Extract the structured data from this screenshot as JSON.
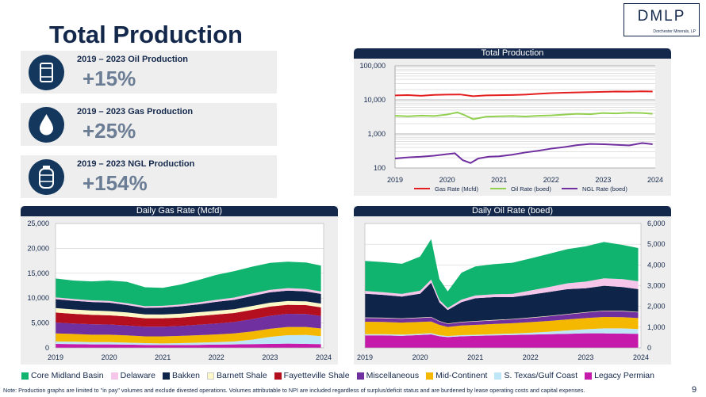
{
  "page": {
    "title": "Total Production",
    "logo_text": "DMLP",
    "logo_subtext": "Dorchester Minerals, LP",
    "page_number": "9",
    "note": "Note: Production graphs are limited to \"in pay\" volumes and exclude divested operations. Volumes attributable to NPI are included regardless of surplus/deficit status and are burdened by lease operating costs and capital expenses."
  },
  "cards": [
    {
      "label": "2019 – 2023 Oil Production",
      "value": "+15%",
      "icon": "oil-barrel-icon"
    },
    {
      "label": "2019 – 2023 Gas Production",
      "value": "+25%",
      "icon": "gas-drop-icon"
    },
    {
      "label": "2019 – 2023 NGL Production",
      "value": "+154%",
      "icon": "ngl-tank-icon"
    }
  ],
  "colors": {
    "navy": "#14284b",
    "gas_rate": "#e41f1f",
    "oil_rate": "#92d050",
    "ngl_rate": "#7030a0"
  },
  "chart_data": [
    {
      "id": "total_production",
      "type": "line",
      "title": "Total Production",
      "yscale": "log",
      "ylim": [
        100,
        100000
      ],
      "ytick_labels": [
        "100",
        "1,000",
        "10,000",
        "100,000"
      ],
      "xlim": [
        2019,
        2024
      ],
      "xtick_labels": [
        "2019",
        "2020",
        "2021",
        "2022",
        "2023",
        "2024"
      ],
      "series": [
        {
          "name": "Gas Rate  (Mcfd)",
          "color": "#e41f1f",
          "x": [
            2019.0,
            2019.25,
            2019.5,
            2019.75,
            2020.0,
            2020.25,
            2020.5,
            2020.75,
            2021.0,
            2021.25,
            2021.5,
            2021.75,
            2022.0,
            2022.25,
            2022.5,
            2022.75,
            2023.0,
            2023.25,
            2023.5,
            2023.75,
            2023.95
          ],
          "values": [
            13500,
            13800,
            13200,
            14000,
            14300,
            14400,
            12800,
            13500,
            13700,
            13900,
            14300,
            15000,
            15800,
            16200,
            16500,
            16800,
            17200,
            17600,
            17400,
            17800,
            17500
          ]
        },
        {
          "name": "Oil Rate (boed)",
          "color": "#92d050",
          "x": [
            2019.0,
            2019.25,
            2019.5,
            2019.75,
            2020.0,
            2020.2,
            2020.35,
            2020.5,
            2020.75,
            2021.0,
            2021.25,
            2021.5,
            2021.75,
            2022.0,
            2022.25,
            2022.5,
            2022.75,
            2023.0,
            2023.25,
            2023.5,
            2023.75,
            2023.95
          ],
          "values": [
            3400,
            3300,
            3450,
            3350,
            3700,
            4300,
            3500,
            2700,
            3200,
            3300,
            3350,
            3250,
            3400,
            3500,
            3700,
            3900,
            3800,
            4100,
            4000,
            4200,
            4100,
            3900
          ]
        },
        {
          "name": "NGL Rate (boed)",
          "color": "#7030a0",
          "x": [
            2019.0,
            2019.25,
            2019.5,
            2019.75,
            2020.0,
            2020.15,
            2020.3,
            2020.45,
            2020.6,
            2020.8,
            2021.0,
            2021.25,
            2021.5,
            2021.75,
            2022.0,
            2022.25,
            2022.5,
            2022.75,
            2023.0,
            2023.25,
            2023.5,
            2023.75,
            2023.95
          ],
          "values": [
            190,
            205,
            215,
            230,
            255,
            270,
            170,
            140,
            190,
            215,
            220,
            245,
            285,
            320,
            370,
            410,
            470,
            510,
            500,
            480,
            460,
            540,
            500
          ]
        }
      ]
    },
    {
      "id": "daily_gas_rate",
      "type": "area",
      "stacked": true,
      "title": "Daily Gas Rate (Mcfd)",
      "ylim": [
        0,
        25000
      ],
      "ytick_labels": [
        "0",
        "5,000",
        "10,000",
        "15,000",
        "20,000",
        "25,000"
      ],
      "xlim": [
        2019,
        2024
      ],
      "xtick_labels": [
        "2019",
        "2020",
        "2021",
        "2022",
        "2023",
        "2024"
      ],
      "x": [
        2019.0,
        2019.33,
        2019.67,
        2020.0,
        2020.33,
        2020.67,
        2021.0,
        2021.33,
        2021.67,
        2022.0,
        2022.33,
        2022.67,
        2023.0,
        2023.33,
        2023.67,
        2023.95
      ],
      "series": [
        {
          "name": "Legacy Permian",
          "color": "#c61aaa",
          "values": [
            800,
            750,
            700,
            700,
            650,
            600,
            550,
            550,
            600,
            650,
            700,
            750,
            800,
            850,
            800,
            750
          ]
        },
        {
          "name": "S. Texas/Gulf Coast",
          "color": "#bfe6f6",
          "values": [
            500,
            500,
            450,
            450,
            400,
            350,
            350,
            400,
            450,
            500,
            600,
            900,
            1400,
            1700,
            1800,
            1600
          ]
        },
        {
          "name": "Mid-Continent",
          "color": "#f5b800",
          "values": [
            1600,
            1550,
            1500,
            1500,
            1450,
            1350,
            1400,
            1450,
            1500,
            1550,
            1600,
            1650,
            1650,
            1650,
            1600,
            1550
          ]
        },
        {
          "name": "Miscellaneous",
          "color": "#7030a0",
          "values": [
            2200,
            2100,
            2100,
            2050,
            2000,
            1950,
            1950,
            2000,
            2100,
            2200,
            2300,
            2500,
            2600,
            2650,
            2600,
            2500
          ]
        },
        {
          "name": "Fayetteville Shale",
          "color": "#b40f1e",
          "values": [
            2000,
            1950,
            1900,
            1850,
            1800,
            1700,
            1700,
            1700,
            1750,
            1800,
            1800,
            1850,
            1850,
            1800,
            1800,
            1750
          ]
        },
        {
          "name": "Barnett Shale",
          "color": "#fdf8c8",
          "values": [
            900,
            880,
            860,
            840,
            820,
            780,
            760,
            760,
            760,
            760,
            760,
            770,
            770,
            760,
            750,
            740
          ]
        },
        {
          "name": "Bakken",
          "color": "#0f2449",
          "values": [
            1800,
            1750,
            1700,
            1700,
            1500,
            1300,
            1400,
            1500,
            1600,
            1800,
            1900,
            2000,
            2100,
            2100,
            2000,
            1950
          ]
        },
        {
          "name": "Delaware",
          "color": "#f5c6ea",
          "values": [
            350,
            350,
            350,
            350,
            350,
            350,
            350,
            350,
            400,
            400,
            450,
            500,
            500,
            500,
            500,
            500
          ]
        },
        {
          "name": "Core Midland Basin",
          "color": "#10b46e",
          "values": [
            3800,
            3700,
            3800,
            4100,
            4300,
            3800,
            3600,
            4000,
            4500,
            5000,
            5300,
            5400,
            5400,
            5300,
            5300,
            5200
          ]
        }
      ]
    },
    {
      "id": "daily_oil_rate",
      "type": "area",
      "stacked": true,
      "title": "Daily Oil Rate (boed)",
      "ylim": [
        0,
        6000
      ],
      "ytick_labels": [
        "0",
        "1,000",
        "2,000",
        "3,000",
        "4,000",
        "5,000",
        "6,000"
      ],
      "xlim": [
        2019,
        2024
      ],
      "xtick_labels": [
        "2019",
        "2020",
        "2021",
        "2022",
        "2023",
        "2024"
      ],
      "x": [
        2019.0,
        2019.33,
        2019.67,
        2020.0,
        2020.2,
        2020.35,
        2020.5,
        2020.75,
        2021.0,
        2021.33,
        2021.67,
        2022.0,
        2022.33,
        2022.67,
        2023.0,
        2023.33,
        2023.67,
        2023.95
      ],
      "series": [
        {
          "name": "Legacy Permian",
          "color": "#c61aaa",
          "values": [
            600,
            600,
            580,
            620,
            650,
            560,
            520,
            560,
            580,
            600,
            620,
            640,
            660,
            680,
            700,
            700,
            690,
            680
          ]
        },
        {
          "name": "S. Texas/Gulf Coast",
          "color": "#bfe6f6",
          "values": [
            60,
            60,
            60,
            60,
            60,
            50,
            50,
            50,
            50,
            60,
            70,
            90,
            120,
            160,
            200,
            240,
            250,
            230
          ]
        },
        {
          "name": "Mid-Continent",
          "color": "#f5b800",
          "values": [
            600,
            590,
            580,
            570,
            560,
            500,
            440,
            470,
            480,
            490,
            500,
            510,
            520,
            530,
            540,
            550,
            540,
            530
          ]
        },
        {
          "name": "Miscellaneous",
          "color": "#7030a0",
          "values": [
            180,
            180,
            180,
            190,
            200,
            160,
            140,
            150,
            160,
            170,
            180,
            200,
            220,
            240,
            260,
            280,
            280,
            270
          ]
        },
        {
          "name": "Fayetteville Shale",
          "color": "#b40f1e",
          "values": [
            5,
            5,
            5,
            5,
            5,
            5,
            5,
            5,
            5,
            5,
            5,
            5,
            5,
            5,
            5,
            5,
            5,
            5
          ]
        },
        {
          "name": "Barnett Shale",
          "color": "#fdf8c8",
          "values": [
            20,
            20,
            20,
            20,
            20,
            20,
            20,
            20,
            20,
            20,
            20,
            20,
            20,
            20,
            20,
            20,
            20,
            20
          ]
        },
        {
          "name": "Bakken",
          "color": "#0f2449",
          "values": [
            1150,
            1100,
            1050,
            1150,
            1650,
            900,
            650,
            950,
            1100,
            1100,
            1050,
            1100,
            1150,
            1200,
            1150,
            1200,
            1150,
            1100
          ]
        },
        {
          "name": "Delaware",
          "color": "#f5c6ea",
          "values": [
            130,
            130,
            130,
            140,
            150,
            120,
            100,
            120,
            130,
            140,
            160,
            200,
            240,
            280,
            320,
            360,
            380,
            380
          ]
        },
        {
          "name": "Core Midland Basin",
          "color": "#10b46e",
          "values": [
            1450,
            1450,
            1450,
            1650,
            1950,
            1000,
            800,
            1300,
            1400,
            1450,
            1500,
            1550,
            1600,
            1650,
            1700,
            1750,
            1650,
            1600
          ]
        }
      ]
    }
  ]
}
